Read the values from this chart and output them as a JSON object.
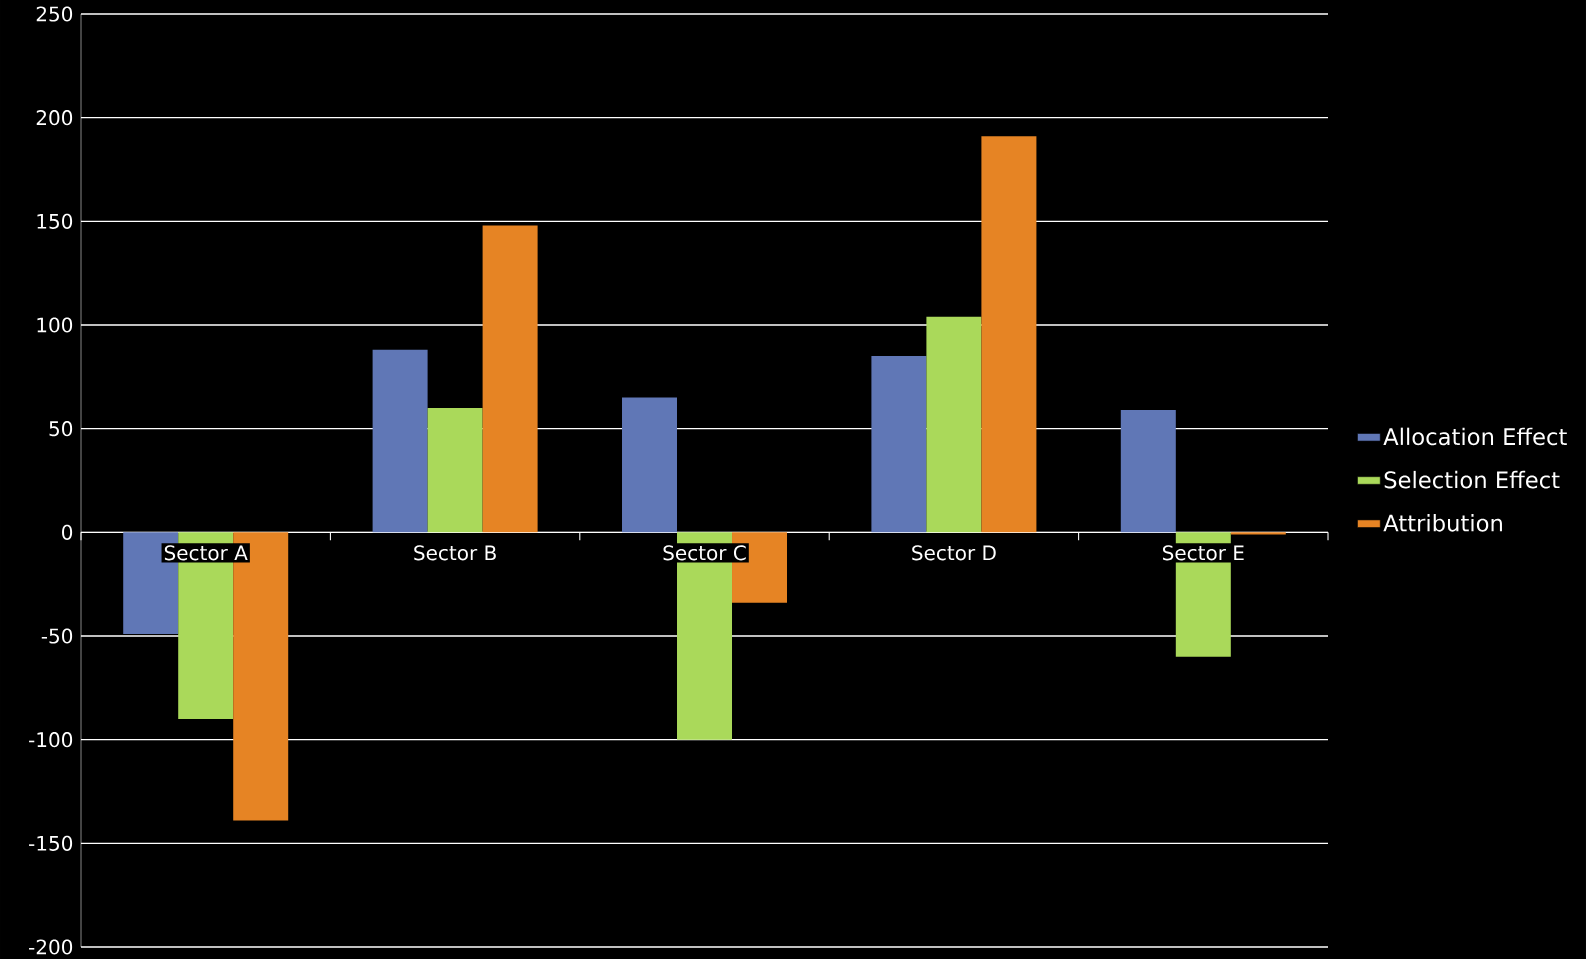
{
  "chart_data": {
    "type": "bar",
    "categories": [
      "Sector A",
      "Sector B",
      "Sector C",
      "Sector D",
      "Sector E"
    ],
    "series": [
      {
        "name": "Allocation Effect",
        "color": "#6077b6",
        "values": [
          -49,
          88,
          65,
          85,
          59
        ]
      },
      {
        "name": "Selection Effect",
        "color": "#aad95a",
        "values": [
          -90,
          60,
          -100,
          104,
          -60
        ]
      },
      {
        "name": "Attribution",
        "color": "#e68424",
        "values": [
          -139,
          148,
          -34,
          191,
          -1
        ]
      }
    ],
    "ylim": [
      -200,
      250
    ],
    "yticks": [
      -200,
      -150,
      -100,
      -50,
      0,
      50,
      100,
      150,
      200,
      250
    ],
    "grid": "y",
    "legend": "right"
  }
}
